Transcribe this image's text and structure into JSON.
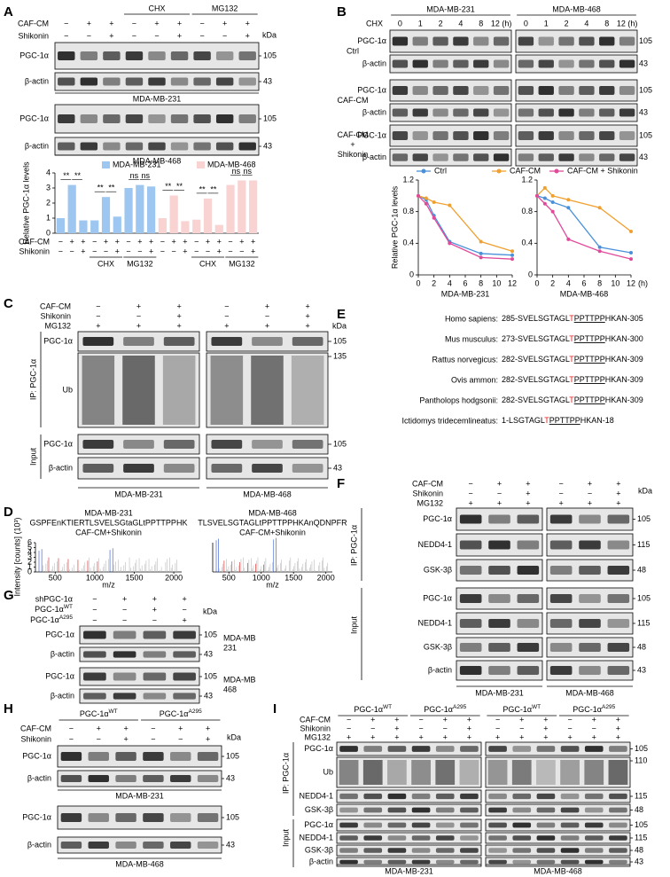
{
  "panel_a": {
    "letter": "A",
    "groups": [
      {
        "label": "CHX"
      },
      {
        "label": "MG132"
      }
    ],
    "headers": [
      {
        "label": "CAF-CM",
        "signs": [
          "−",
          "+",
          "+",
          "−",
          "+",
          "+",
          "−",
          "+",
          "+"
        ]
      },
      {
        "label": "Shikonin",
        "signs": [
          "−",
          "−",
          "+",
          "−",
          "−",
          "+",
          "−",
          "−",
          "+"
        ]
      }
    ],
    "kda_label": "kDa",
    "blocks": [
      {
        "rows": [
          {
            "label": "PGC-1α",
            "kda": 105
          },
          {
            "label": "β-actin",
            "kda": 43
          }
        ],
        "cell": "MDA-MB-231"
      },
      {
        "rows": [
          {
            "label": "PGC-1α",
            "kda": 105
          },
          {
            "label": "β-actin",
            "kda": 43
          }
        ],
        "cell": "MDA-MB-468"
      }
    ]
  },
  "panel_b": {
    "letter": "B",
    "groups": [
      {
        "label": "MDA-MB-231"
      },
      {
        "label": "MDA-MB-468"
      }
    ],
    "headers": [
      {
        "label": "CHX",
        "signs": [
          0,
          1,
          2,
          4,
          8,
          "12 (h)",
          0,
          1,
          2,
          4,
          8,
          "12 (h)"
        ]
      }
    ],
    "blocks": [
      {
        "group": "Ctrl",
        "rows": [
          {
            "label": "PGC-1α",
            "kda": 105
          },
          {
            "label": "β-actin",
            "kda": 43
          }
        ]
      },
      {
        "group": "CAF-CM",
        "rows": [
          {
            "label": "PGC-1α",
            "kda": 105
          },
          {
            "label": "β-actin",
            "kda": 43
          }
        ]
      },
      {
        "group": [
          "CAF-CM",
          "+",
          "Shikonin"
        ],
        "rows": [
          {
            "label": "PGC-1α",
            "kda": 105
          },
          {
            "label": "β-actin",
            "kda": 43
          }
        ]
      }
    ]
  },
  "panel_c": {
    "letter": "C",
    "headers": [
      {
        "label": "CAF-CM",
        "signs": [
          "−",
          "+",
          "+",
          "−",
          "+",
          "+"
        ]
      },
      {
        "label": "Shikonin",
        "signs": [
          "−",
          "−",
          "+",
          "−",
          "−",
          "+"
        ]
      },
      {
        "label": "MG132",
        "signs": [
          "+",
          "+",
          "+",
          "+",
          "+",
          "+"
        ]
      }
    ],
    "kda_label": "kDa",
    "blocks": [
      {
        "rows": [
          {
            "label": "PGC-1α",
            "kda": 105
          },
          {
            "label": "Ub",
            "kda": 135
          }
        ]
      },
      {
        "rows": [
          {
            "label": "PGC-1α",
            "kda": 105
          },
          {
            "label": "β-actin",
            "kda": 43
          }
        ]
      }
    ],
    "side_labels": [
      "IP: PGC-1α",
      "Input"
    ],
    "cells": [
      "MDA-MB-231",
      "MDA-MB-468"
    ]
  },
  "panel_d": {
    "letter": "D",
    "y_label": "Intensity [counts] (10³)",
    "yticks": [
      0,
      1,
      2,
      3,
      4,
      5,
      6
    ],
    "spectra": [
      {
        "title": "MDA-MB-231",
        "sequence": "GSPFEnKTIERTLSVELSGtaGLtPPTTPPHK",
        "condition": "CAF-CM+Shikonin",
        "xticks": [
          500,
          1000,
          1500,
          2000
        ],
        "x_label": "m/z"
      },
      {
        "title": "MDA-MB-468",
        "sequence": "TLSVELSGTAGLtPPTTPPHKAnQDNPFR",
        "condition": "CAF-CM+Shikonin",
        "xticks": [
          500,
          1000,
          1500,
          2000
        ],
        "x_label": "m/z"
      }
    ]
  },
  "panel_e": {
    "letter": "E",
    "rows": [
      {
        "species": "Homo sapiens:",
        "sequence": [
          "285-SVELSGTAGL",
          "T",
          "PPTTPP",
          "HKAN-305"
        ]
      },
      {
        "species": "Mus musculus:",
        "sequence": [
          "273-SVELSGTAGL",
          "T",
          "PPTTPP",
          "HKAN-300"
        ]
      },
      {
        "species": "Rattus norvegicus:",
        "sequence": [
          "282-SVELSGTAGL",
          "T",
          "PPTTPP",
          "HKAN-309"
        ]
      },
      {
        "species": "Ovis ammon:",
        "sequence": [
          "282-SVELSGTAGL",
          "T",
          "PPTTPP",
          "HKAN-309"
        ]
      },
      {
        "species": "Pantholops hodgsonii:",
        "sequence": [
          "282-SVELSGTAGL",
          "T",
          "PPTTPP",
          "HKAN-309"
        ]
      },
      {
        "species": "Ictidomys tridecemlineatus:",
        "sequence": [
          "1-LSGTAGL",
          "T",
          "PPTTPP",
          "HKAN-18"
        ]
      }
    ]
  },
  "panel_f": {
    "letter": "F",
    "headers": [
      {
        "label": "CAF-CM",
        "signs": [
          "−",
          "+",
          "+",
          "−",
          "+",
          "+"
        ]
      },
      {
        "label": "Shikonin",
        "signs": [
          "−",
          "−",
          "+",
          "−",
          "−",
          "+"
        ]
      },
      {
        "label": "MG132",
        "signs": [
          "+",
          "+",
          "+",
          "+",
          "+",
          "+"
        ]
      }
    ],
    "kda_label": "kDa",
    "blocks": [
      {
        "rows": [
          {
            "label": "PGC-1α",
            "kda": 105
          },
          {
            "label": "NEDD4-1",
            "kda": 115
          },
          {
            "label": "GSK-3β",
            "kda": 48
          }
        ]
      },
      {
        "rows": [
          {
            "label": "PGC-1α",
            "kda": 105
          },
          {
            "label": "NEDD4-1",
            "kda": 115
          },
          {
            "label": "GSK-3β",
            "kda": 48
          },
          {
            "label": "β-actin",
            "kda": 43
          }
        ]
      }
    ],
    "side_labels": [
      "IP: PGC-1α",
      "Input"
    ],
    "cells": [
      "MDA-MB-231",
      "MDA-MB-468"
    ]
  },
  "panel_g": {
    "letter": "G",
    "headers": [
      {
        "label": "shPGC-1α",
        "signs": [
          "−",
          "+",
          "+",
          "+"
        ]
      },
      {
        "label": {
          "text": "PGC-1α",
          "sup": "WT"
        },
        "signs": [
          "−",
          "−",
          "+",
          "−"
        ]
      },
      {
        "label": {
          "text": "PGC-1α",
          "sup": "A295"
        },
        "signs": [
          "−",
          "−",
          "−",
          "+"
        ]
      }
    ],
    "kda_label": "kDa",
    "blocks": [
      {
        "rows": [
          {
            "label": "PGC-1α",
            "kda": 105
          },
          {
            "label": "β-actin",
            "kda": 43
          }
        ],
        "cell": [
          "MDA-MB",
          "231"
        ]
      },
      {
        "rows": [
          {
            "label": "PGC-1α",
            "kda": 105
          },
          {
            "label": "β-actin",
            "kda": 43
          }
        ],
        "cell": [
          "MDA-MB",
          "468"
        ]
      }
    ]
  },
  "panel_h": {
    "letter": "H",
    "groups": [
      {
        "label": {
          "text": "PGC-1α",
          "sup": "WT"
        }
      },
      {
        "label": {
          "text": "PGC-1α",
          "sup": "A295"
        }
      }
    ],
    "headers": [
      {
        "label": "CAF-CM",
        "signs": [
          "−",
          "+",
          "+",
          "−",
          "+",
          "+"
        ]
      },
      {
        "label": "Shikonin",
        "signs": [
          "−",
          "−",
          "+",
          "−",
          "−",
          "+"
        ]
      }
    ],
    "kda_label": "kDa",
    "blocks": [
      {
        "rows": [
          {
            "label": "PGC-1α",
            "kda": 105
          },
          {
            "label": "β-actin",
            "kda": 43
          }
        ],
        "cell": "MDA-MB-231"
      },
      {
        "rows": [
          {
            "label": "PGC-1α",
            "kda": 105
          },
          {
            "label": "β-actin",
            "kda": 43
          }
        ],
        "cell": "MDA-MB-468"
      }
    ]
  },
  "panel_i": {
    "letter": "I",
    "groups": [
      {
        "label": {
          "text": "PGC-1α",
          "sup": "WT"
        }
      },
      {
        "label": {
          "text": "PGC-1α",
          "sup": "A295"
        }
      },
      {
        "label": {
          "text": "PGC-1α",
          "sup": "WT"
        }
      },
      {
        "label": {
          "text": "PGC-1α",
          "sup": "A295"
        }
      }
    ],
    "headers": [
      {
        "label": "CAF-CM",
        "signs": [
          "−",
          "+",
          "+",
          "−",
          "+",
          "+",
          "−",
          "+",
          "+",
          "−",
          "+",
          "+"
        ]
      },
      {
        "label": "Shikonin",
        "signs": [
          "−",
          "−",
          "+",
          "−",
          "−",
          "+",
          "−",
          "−",
          "+",
          "−",
          "−",
          "+"
        ]
      },
      {
        "label": "MG132",
        "signs": [
          "+",
          "+",
          "+",
          "+",
          "+",
          "+",
          "+",
          "+",
          "+",
          "+",
          "+",
          "+"
        ]
      }
    ],
    "blocks": [
      {
        "rows": [
          {
            "label": "PGC-1α",
            "kda": 105
          },
          {
            "label": "Ub",
            "kda": 110
          },
          {
            "label": "NEDD4-1",
            "kda": 115
          },
          {
            "label": "GSK-3β",
            "kda": 48
          }
        ]
      },
      {
        "rows": [
          {
            "label": "PGC-1α",
            "kda": 105
          },
          {
            "label": "NEDD4-1",
            "kda": 115
          },
          {
            "label": "GSK-3β",
            "kda": 48
          },
          {
            "label": "β-actin",
            "kda": 43
          }
        ]
      }
    ],
    "side_labels": [
      "IP: PGC-1α",
      "Input"
    ],
    "cells": [
      "MDA-MB-231",
      "MDA-MB-468"
    ]
  },
  "chart_data": [
    {
      "type": "bar",
      "y_label": "Relative PGC-1α levels",
      "ylim": [
        0,
        4
      ],
      "yticks": [
        0,
        1,
        2,
        3,
        4
      ],
      "series": [
        {
          "name": "MDA-MB-231",
          "color": "#9dc6f0",
          "values": [
            1,
            3.2,
            0.85,
            0.85,
            2.4,
            1.1,
            3.0,
            3.2,
            3.1
          ]
        },
        {
          "name": "MDA-MB-468",
          "color": "#f9d2d2",
          "values": [
            1,
            2.5,
            0.8,
            0.9,
            2.3,
            0.55,
            3.2,
            3.5,
            3.5
          ]
        }
      ],
      "significance": [
        "**",
        "**",
        "**",
        "**",
        "ns",
        "ns",
        "**",
        "**",
        "**",
        "**",
        "ns",
        "ns"
      ],
      "row_labels": [
        "CAF-CM",
        "Shikonin"
      ],
      "caf_cm": [
        "−",
        "+",
        "+",
        "−",
        "+",
        "+",
        "−",
        "+",
        "+",
        "−",
        "+",
        "+",
        "−",
        "+",
        "+",
        "−",
        "+",
        "+"
      ],
      "shikonin": [
        "−",
        "−",
        "+",
        "−",
        "−",
        "+",
        "−",
        "−",
        "+",
        "−",
        "−",
        "+",
        "−",
        "−",
        "+",
        "−",
        "−",
        "+"
      ],
      "groups": [
        "CHX",
        "MG132",
        "CHX",
        "MG132"
      ]
    },
    {
      "type": "line",
      "y_label": "Relative PGC-1α levels",
      "x_label": "MDA-MB-231",
      "x": [
        0,
        1,
        2,
        4,
        8,
        12
      ],
      "xlim": [
        0,
        12
      ],
      "xticks": [
        0,
        2,
        4,
        6,
        8,
        10,
        12
      ],
      "ylim": [
        0,
        1.2
      ],
      "yticks": [
        0,
        0.4,
        0.8,
        1.2
      ],
      "series": [
        {
          "name": "Ctrl",
          "color": "#4a90d9",
          "values": [
            1,
            0.95,
            0.75,
            0.42,
            0.27,
            0.25
          ]
        },
        {
          "name": "CAF-CM",
          "color": "#f0a030",
          "values": [
            1,
            0.97,
            0.92,
            0.88,
            0.42,
            0.3
          ]
        },
        {
          "name": "CAF-CM + Shikonin",
          "color": "#e04a9a",
          "values": [
            1,
            0.9,
            0.72,
            0.4,
            0.22,
            0.2
          ]
        }
      ]
    },
    {
      "type": "line",
      "x_label": "MDA-MB-468",
      "x_unit": "(h)",
      "x": [
        0,
        1,
        2,
        4,
        8,
        12
      ],
      "xlim": [
        0,
        12
      ],
      "xticks": [
        0,
        2,
        4,
        6,
        8,
        10,
        12
      ],
      "ylim": [
        0,
        1.2
      ],
      "yticks": [
        0,
        0.4,
        0.8,
        1.2
      ],
      "series": [
        {
          "color": "#4a90d9",
          "values": [
            1,
            0.97,
            0.92,
            0.85,
            0.35,
            0.28
          ]
        },
        {
          "color": "#f0a030",
          "values": [
            1,
            1.1,
            1.0,
            0.95,
            0.85,
            0.55
          ]
        },
        {
          "color": "#e04a9a",
          "values": [
            1,
            0.9,
            0.8,
            0.45,
            0.3,
            0.2
          ]
        }
      ]
    }
  ]
}
